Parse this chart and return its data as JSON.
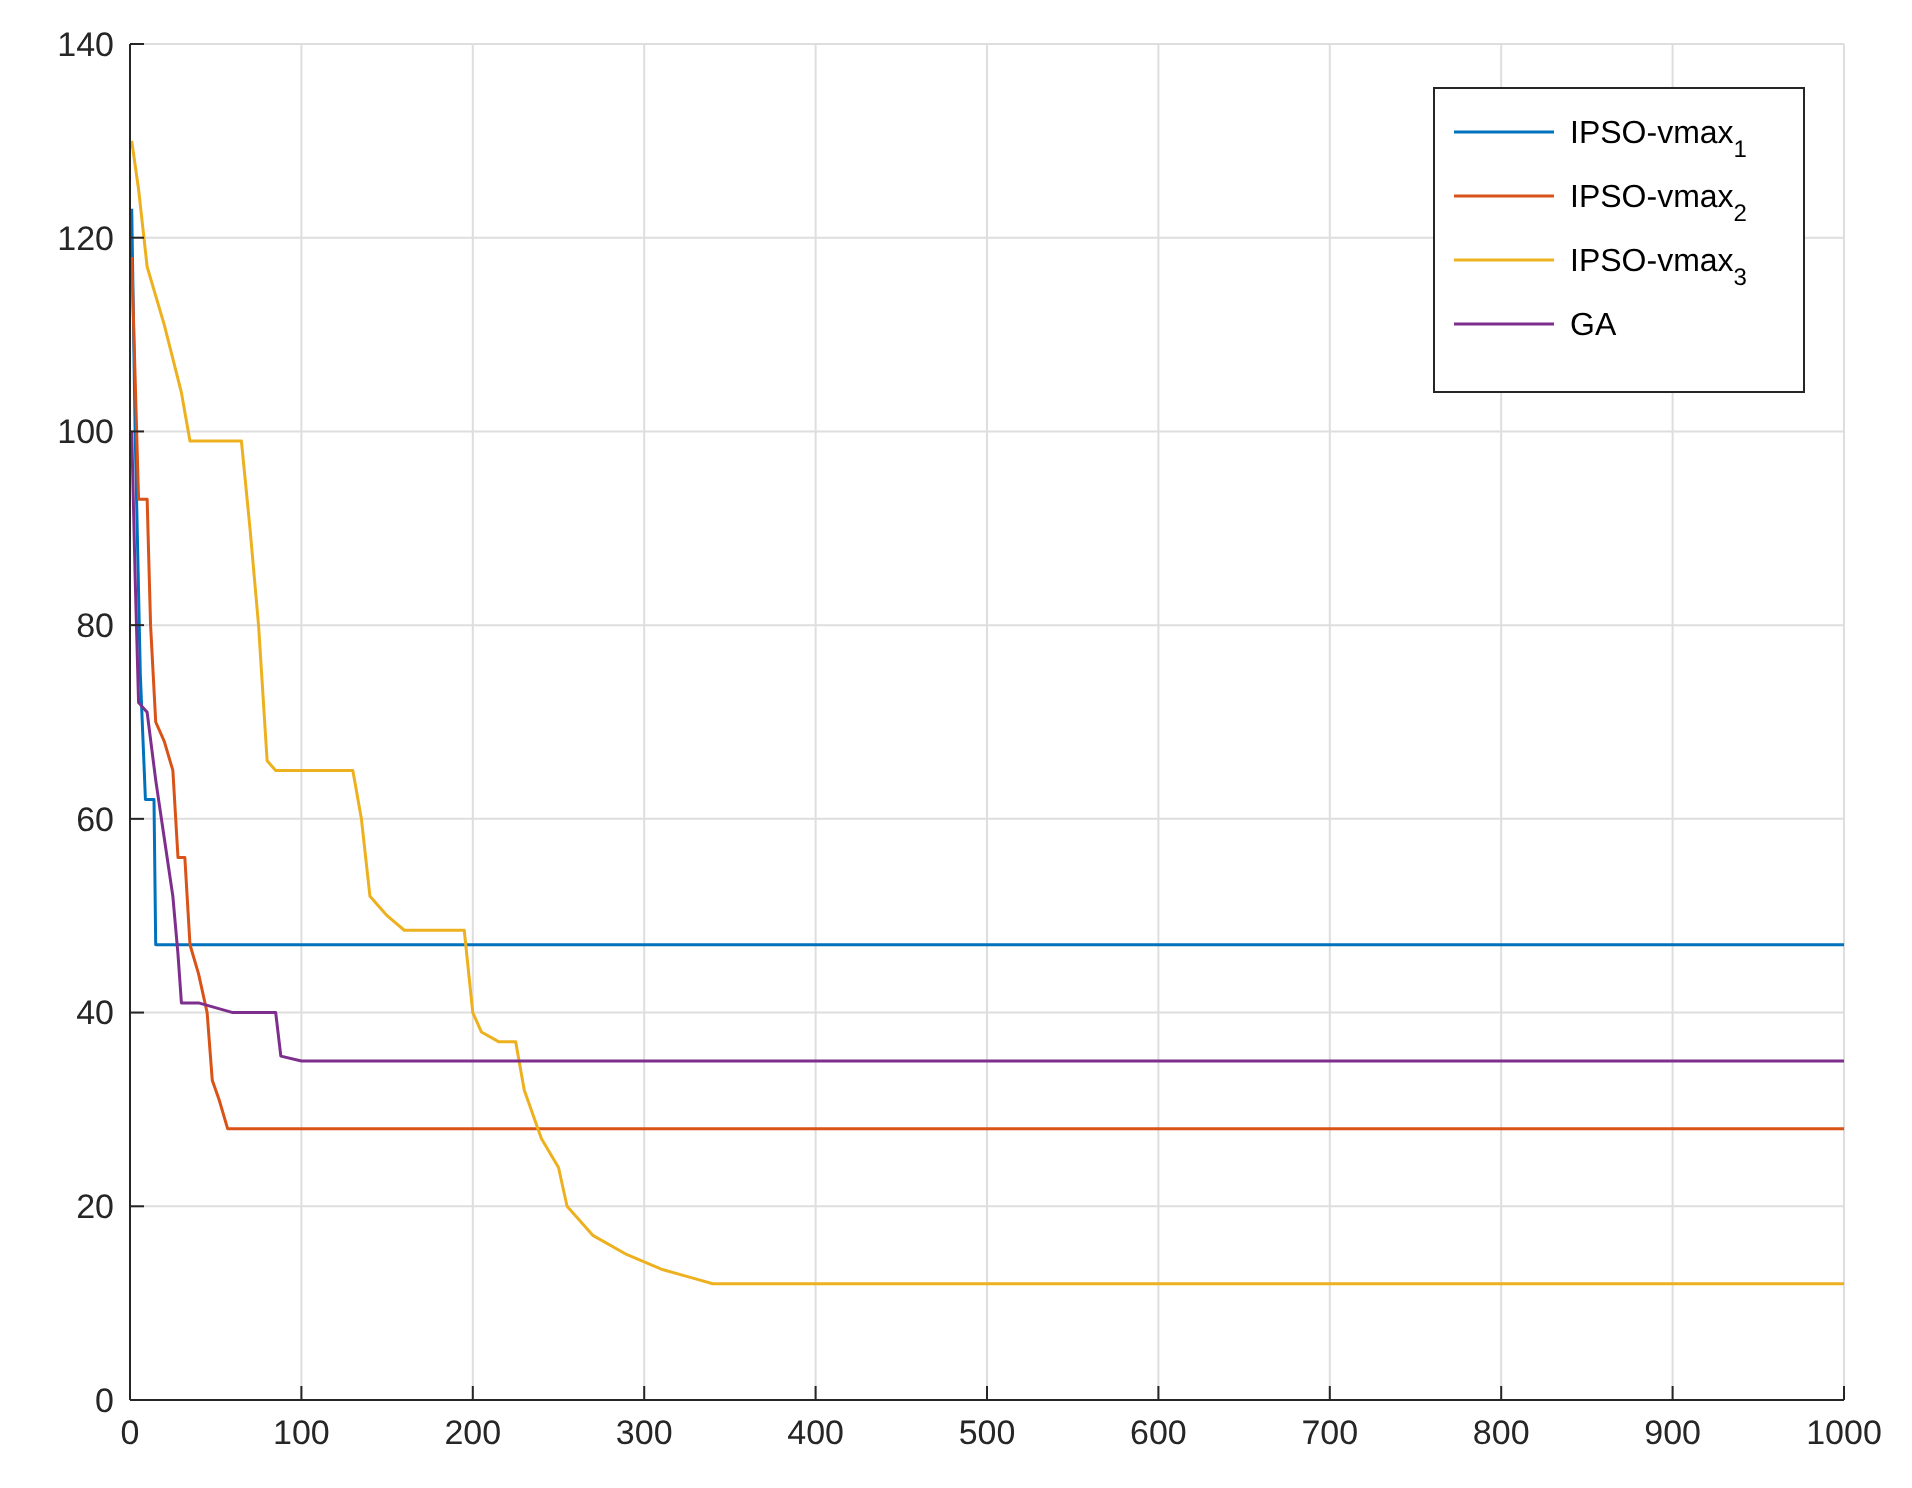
{
  "chart_data": {
    "type": "line",
    "xlim": [
      0,
      1000
    ],
    "ylim": [
      0,
      140
    ],
    "xticks": [
      0,
      100,
      200,
      300,
      400,
      500,
      600,
      700,
      800,
      900,
      1000
    ],
    "yticks": [
      0,
      20,
      40,
      60,
      80,
      100,
      120,
      140
    ],
    "grid": true,
    "legend": "top right",
    "series": [
      {
        "name": "IPSO-vmax$_{1}$",
        "color": "#0072bd",
        "x": [
          1,
          3,
          6,
          9,
          14,
          15,
          1000
        ],
        "values": [
          123,
          100,
          75,
          62,
          62,
          47,
          47
        ]
      },
      {
        "name": "IPSO-vmax$_{2}$",
        "color": "#d95319",
        "x": [
          1,
          5,
          10,
          12,
          15,
          20,
          25,
          28,
          32,
          35,
          40,
          45,
          48,
          52,
          57,
          1000
        ],
        "values": [
          118,
          93,
          93,
          80,
          70,
          68,
          65,
          56,
          56,
          47,
          44,
          40,
          33,
          31,
          28,
          28
        ]
      },
      {
        "name": "IPSO-vmax$_{3}$",
        "color": "#edb120",
        "x": [
          1,
          5,
          10,
          20,
          30,
          35,
          45,
          65,
          70,
          75,
          80,
          85,
          130,
          135,
          140,
          150,
          160,
          195,
          200,
          205,
          215,
          225,
          230,
          240,
          250,
          255,
          270,
          290,
          310,
          330,
          340,
          1000
        ],
        "values": [
          130,
          125,
          117,
          111,
          104,
          99,
          99,
          99,
          90,
          80,
          66,
          65,
          65,
          60,
          52,
          50,
          48.5,
          48.5,
          40,
          38,
          37,
          37,
          32,
          27,
          24,
          20,
          17,
          15,
          13.5,
          12.5,
          12,
          12
        ]
      },
      {
        "name": "GA",
        "color": "#7e2f8e",
        "x": [
          1,
          3,
          5,
          10,
          15,
          20,
          25,
          28,
          30,
          40,
          60,
          70,
          85,
          88,
          100,
          1000
        ],
        "values": [
          100,
          85,
          72,
          71,
          64,
          58,
          52,
          46,
          41,
          41,
          40,
          40,
          40,
          35.5,
          35,
          35
        ]
      }
    ]
  }
}
